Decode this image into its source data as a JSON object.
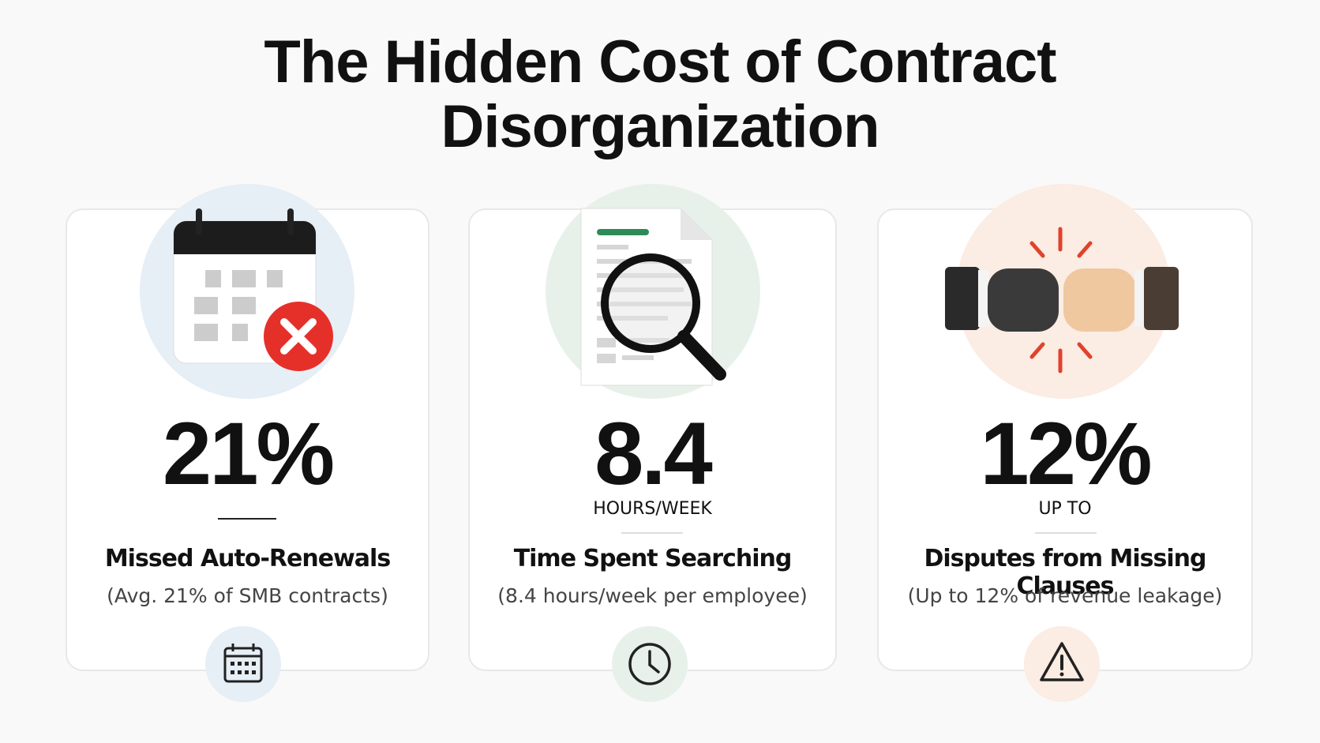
{
  "header": {
    "title": "The Hidden Cost of Contract Disorganization"
  },
  "cards": [
    {
      "stat": "21%",
      "heading": "Missed Auto-Renewals",
      "detail": "(Avg. 21% of SMB contracts)"
    },
    {
      "stat": "8.4",
      "unit": "HOURS/WEEK",
      "heading": "Time Spent Searching",
      "detail": "(8.4 hours/week per employee)"
    },
    {
      "stat": "12%",
      "unit": "UP TO",
      "heading": "Disputes from Missing Clauses",
      "detail": "(Up to 12% of revenue leakage)"
    }
  ]
}
